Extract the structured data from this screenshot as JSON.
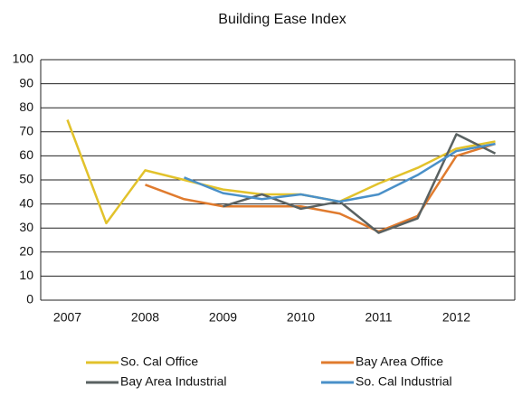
{
  "chart_data": {
    "type": "line",
    "title": "Building Ease Index",
    "categories": [
      "2007",
      null,
      "2008",
      null,
      "2009",
      null,
      "2010",
      null,
      "2011",
      null,
      "2012",
      null
    ],
    "series": [
      {
        "name": "So. Cal Office",
        "color": "#e2c22b",
        "values": [
          75,
          32,
          54,
          50,
          46,
          44,
          44,
          41,
          48.5,
          55,
          63,
          66
        ]
      },
      {
        "name": "Bay Area Office",
        "color": "#e07b2e",
        "values": [
          null,
          null,
          48,
          42,
          39,
          39,
          39,
          36,
          28.5,
          35,
          60,
          65
        ]
      },
      {
        "name": "Bay Area Industrial",
        "color": "#5a6262",
        "values": [
          null,
          null,
          null,
          null,
          39,
          44,
          38,
          41,
          28,
          34,
          69,
          61
        ]
      },
      {
        "name": "So. Cal Industrial",
        "color": "#4a90c8",
        "values": [
          null,
          null,
          null,
          51,
          44.5,
          42,
          44,
          41,
          44,
          52,
          62,
          65
        ]
      }
    ],
    "ylim": [
      0,
      100
    ],
    "yticks": [
      0,
      10,
      20,
      30,
      40,
      50,
      60,
      70,
      80,
      90,
      100
    ],
    "grid": true,
    "legend": "bottom"
  }
}
